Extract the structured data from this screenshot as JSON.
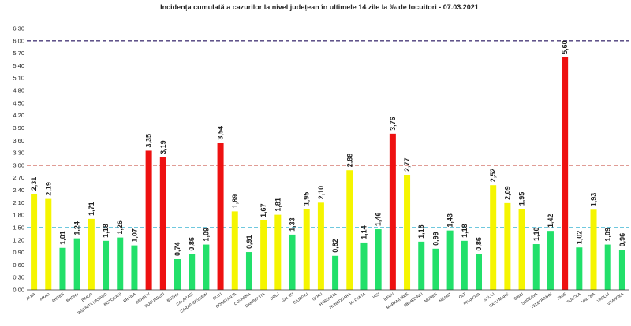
{
  "chart_data": {
    "type": "bar",
    "title": "Incidența cumulată a cazurilor la nivel județean în ultimele 14 zile la ‰ de locuitori - 07.03.2021",
    "xlabel": "",
    "ylabel": "",
    "ylim": [
      0,
      6.3
    ],
    "y_ticks": [
      "0,00",
      "0,30",
      "0,60",
      "0,90",
      "1,20",
      "1,50",
      "1,80",
      "2,10",
      "2,40",
      "2,70",
      "3,00",
      "3,30",
      "3,60",
      "3,90",
      "4,20",
      "4,50",
      "4,80",
      "5,10",
      "5,40",
      "5,70",
      "6,00",
      "6,30"
    ],
    "grid": false,
    "legend": "none",
    "categories": [
      "ALBA",
      "ARAD",
      "ARGES",
      "BACAU",
      "BIHOR",
      "BISTRITA NASAUD",
      "BOTOSANI",
      "BRAILA",
      "BRASOV",
      "BUCURESTI",
      "BUZAU",
      "CALARASI",
      "CARAS-SEVERIN",
      "CLUJ",
      "CONSTANTA",
      "COVASNA",
      "DAMBOVITA",
      "DOLJ",
      "GALATI",
      "GIURGIU",
      "GORJ",
      "HARGHITA",
      "HUNEDOARA",
      "IALOMITA",
      "IASI",
      "ILFOV",
      "MARAMURES",
      "MEHEDINTI",
      "MURES",
      "NEAMT",
      "OLT",
      "PRAHOVA",
      "SALAJ",
      "SATU MARE",
      "SIBIU",
      "SUCEAVA",
      "TELEORMAN",
      "TIMIS",
      "TULCEA",
      "VALCEA",
      "VASLUI",
      "VRANCEA"
    ],
    "values": [
      2.31,
      2.19,
      1.01,
      1.24,
      1.71,
      1.18,
      1.26,
      1.07,
      3.35,
      3.19,
      0.74,
      0.86,
      1.09,
      3.54,
      1.89,
      0.91,
      1.67,
      1.81,
      1.33,
      1.95,
      2.1,
      0.82,
      2.88,
      1.14,
      1.46,
      3.76,
      2.77,
      1.16,
      0.99,
      1.43,
      1.18,
      0.86,
      2.52,
      2.09,
      1.95,
      1.1,
      1.42,
      5.6,
      1.02,
      1.93,
      1.09,
      0.96
    ],
    "value_labels": [
      "2,31",
      "2,19",
      "1,01",
      "1,24",
      "1,71",
      "1,18",
      "1,26",
      "1,07",
      "3,35",
      "3,19",
      "0,74",
      "0,86",
      "1,09",
      "3,54",
      "1,89",
      "0,91",
      "1,67",
      "1,81",
      "1,33",
      "1,95",
      "2,10",
      "0,82",
      "2,88",
      "1,14",
      "1,46",
      "3,76",
      "2,77",
      "1,16",
      "0,99",
      "1,43",
      "1,18",
      "0,86",
      "2,52",
      "2,09",
      "1,95",
      "1,10",
      "1,42",
      "5,60",
      "1,02",
      "1,93",
      "1,09",
      "0,96"
    ],
    "thresholds": [
      {
        "value": 1.5,
        "color": "#3fb5d4"
      },
      {
        "value": 3.0,
        "color": "#c0392b"
      },
      {
        "value": 6.0,
        "color": "#4a3b7a"
      }
    ],
    "colors": {
      "green": "#22e06a",
      "yellow": "#f5f500",
      "red": "#ee1111",
      "axis": "#555555",
      "zero_line": "#333333"
    }
  }
}
